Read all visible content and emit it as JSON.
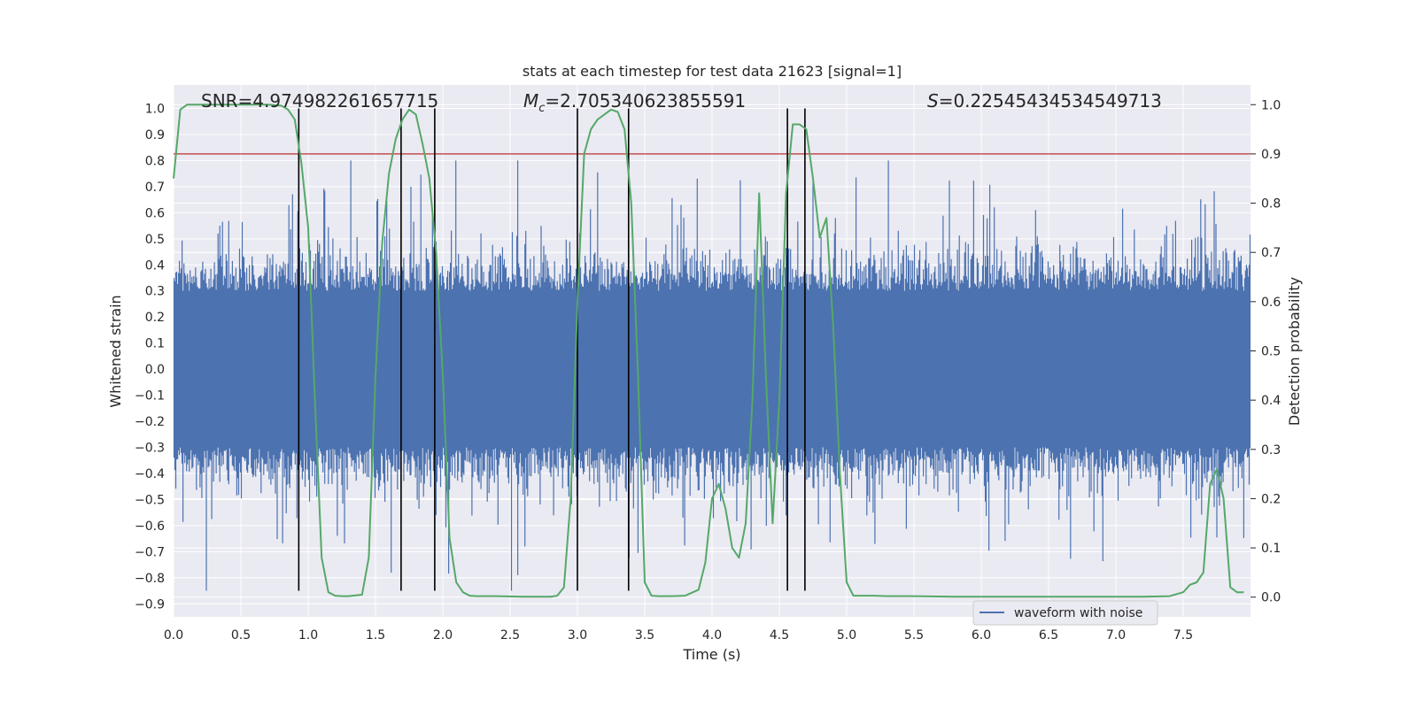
{
  "chart_data": {
    "type": "line",
    "title": "stats at each timestep for test data 21623 [signal=1]",
    "xlabel": "Time (s)",
    "ylabel": "Whitened strain",
    "y2label": "Detection probability",
    "xlim": [
      0,
      8
    ],
    "ylim": [
      -0.95,
      1.09
    ],
    "y2lim": [
      -0.04,
      1.04
    ],
    "x_ticks": [
      0.0,
      0.5,
      1.0,
      1.5,
      2.0,
      2.5,
      3.0,
      3.5,
      4.0,
      4.5,
      5.0,
      5.5,
      6.0,
      6.5,
      7.0,
      7.5
    ],
    "y_ticks": [
      1.0,
      0.9,
      0.8,
      0.7,
      0.6,
      0.5,
      0.4,
      0.3,
      0.2,
      0.1,
      0.0,
      -0.1,
      -0.2,
      -0.3,
      -0.4,
      -0.5,
      -0.6,
      -0.7,
      -0.8,
      -0.9
    ],
    "y2_ticks": [
      1.0,
      0.9,
      0.8,
      0.7,
      0.6,
      0.5,
      0.4,
      0.3,
      0.2,
      0.1,
      0.0
    ],
    "annotations": {
      "snr": "SNR=4.974982261657715",
      "mc_symbol": "M",
      "mc_sub": "c",
      "mc_value": "=2.705340623855591",
      "s_symbol": "S",
      "s_value": "=0.22545434534549713"
    },
    "threshold": {
      "y2": 0.9,
      "color": "#c44e52"
    },
    "vlines": [
      0.93,
      1.69,
      1.94,
      3.0,
      3.38,
      4.56,
      4.69
    ],
    "vline_range": [
      -0.85,
      1.0
    ],
    "series": [
      {
        "name": "waveform with noise",
        "color": "#4c72b0",
        "style": "dense-noise",
        "sample_count": 1200,
        "seed": 21623
      },
      {
        "name": "detection probability",
        "color": "#55a868",
        "axis": "right",
        "x": [
          0.0,
          0.05,
          0.1,
          0.15,
          0.2,
          0.3,
          0.5,
          0.7,
          0.8,
          0.85,
          0.9,
          0.95,
          1.0,
          1.05,
          1.1,
          1.15,
          1.2,
          1.25,
          1.3,
          1.4,
          1.45,
          1.5,
          1.55,
          1.6,
          1.65,
          1.7,
          1.75,
          1.8,
          1.85,
          1.9,
          1.95,
          2.0,
          2.05,
          2.1,
          2.15,
          2.2,
          2.25,
          2.3,
          2.4,
          2.6,
          2.8,
          2.85,
          2.9,
          2.95,
          3.0,
          3.05,
          3.1,
          3.15,
          3.2,
          3.25,
          3.3,
          3.35,
          3.4,
          3.45,
          3.5,
          3.55,
          3.6,
          3.7,
          3.8,
          3.9,
          3.95,
          4.0,
          4.05,
          4.1,
          4.15,
          4.2,
          4.25,
          4.3,
          4.35,
          4.4,
          4.45,
          4.5,
          4.55,
          4.6,
          4.65,
          4.7,
          4.75,
          4.8,
          4.85,
          4.9,
          4.95,
          5.0,
          5.05,
          5.1,
          5.2,
          5.3,
          5.5,
          5.8,
          6.0,
          6.5,
          7.0,
          7.2,
          7.4,
          7.5,
          7.55,
          7.6,
          7.65,
          7.7,
          7.75,
          7.8,
          7.85,
          7.9,
          7.95
        ],
        "values": [
          0.85,
          0.99,
          1.0,
          1.0,
          1.0,
          1.0,
          1.0,
          1.0,
          0.998,
          0.99,
          0.97,
          0.88,
          0.75,
          0.4,
          0.08,
          0.01,
          0.003,
          0.002,
          0.002,
          0.005,
          0.08,
          0.45,
          0.72,
          0.86,
          0.93,
          0.97,
          0.99,
          0.98,
          0.92,
          0.85,
          0.7,
          0.45,
          0.12,
          0.03,
          0.01,
          0.003,
          0.002,
          0.002,
          0.002,
          0.001,
          0.001,
          0.003,
          0.02,
          0.2,
          0.6,
          0.9,
          0.95,
          0.97,
          0.98,
          0.99,
          0.985,
          0.95,
          0.8,
          0.45,
          0.03,
          0.003,
          0.002,
          0.002,
          0.003,
          0.015,
          0.07,
          0.2,
          0.23,
          0.18,
          0.1,
          0.08,
          0.15,
          0.4,
          0.82,
          0.45,
          0.15,
          0.4,
          0.82,
          0.96,
          0.96,
          0.95,
          0.85,
          0.73,
          0.77,
          0.55,
          0.25,
          0.03,
          0.003,
          0.003,
          0.003,
          0.002,
          0.002,
          0.001,
          0.001,
          0.001,
          0.001,
          0.001,
          0.002,
          0.01,
          0.025,
          0.03,
          0.05,
          0.23,
          0.26,
          0.2,
          0.02,
          0.01,
          0.01
        ]
      }
    ],
    "legend": {
      "label": "waveform with noise",
      "placement": "lower-right"
    },
    "grid": true
  }
}
